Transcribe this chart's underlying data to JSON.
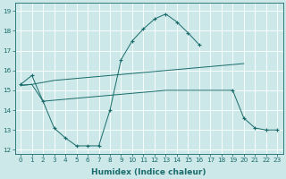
{
  "xlabel": "Humidex (Indice chaleur)",
  "bg_color": "#cce8e8",
  "grid_color": "#ffffff",
  "line_color": "#1a6b6b",
  "xlim": [
    -0.5,
    23.5
  ],
  "ylim": [
    11.8,
    19.4
  ],
  "yticks": [
    12,
    13,
    14,
    15,
    16,
    17,
    18,
    19
  ],
  "xticks": [
    0,
    1,
    2,
    3,
    4,
    5,
    6,
    7,
    8,
    9,
    10,
    11,
    12,
    13,
    14,
    15,
    16,
    17,
    18,
    19,
    20,
    21,
    22,
    23
  ],
  "series": [
    {
      "x": [
        0,
        1,
        2,
        3,
        4,
        5,
        6,
        7,
        8,
        9,
        10,
        11,
        12,
        13,
        14,
        15,
        16,
        17,
        18,
        19,
        20,
        21,
        22,
        23
      ],
      "y": [
        15.3,
        15.75,
        14.45,
        13.1,
        12.6,
        12.2,
        12.2,
        12.2,
        14.0,
        16.55,
        17.5,
        18.1,
        18.6,
        18.85,
        18.45,
        17.9,
        17.3,
        null,
        null,
        15.0,
        13.6,
        13.1,
        13.0,
        13.0
      ],
      "marker": true
    },
    {
      "x": [
        0,
        1,
        2,
        3,
        4,
        5,
        6,
        7,
        8,
        9,
        10,
        11,
        12,
        13,
        14,
        15,
        16,
        17,
        18,
        19,
        20
      ],
      "y": [
        15.25,
        15.3,
        15.4,
        15.5,
        15.55,
        15.6,
        15.65,
        15.7,
        15.75,
        15.8,
        15.85,
        15.9,
        15.95,
        16.0,
        16.05,
        16.1,
        16.15,
        16.2,
        16.25,
        16.3,
        16.35
      ],
      "marker": false
    },
    {
      "x": [
        0,
        1,
        2,
        3,
        4,
        5,
        6,
        7,
        8,
        9,
        10,
        11,
        12,
        13,
        14,
        15,
        16,
        17,
        18,
        19
      ],
      "y": [
        15.25,
        15.3,
        14.45,
        14.5,
        14.55,
        14.6,
        14.65,
        14.7,
        14.75,
        14.8,
        14.85,
        14.9,
        14.95,
        15.0,
        15.0,
        15.0,
        15.0,
        15.0,
        15.0,
        15.0
      ],
      "marker": false
    }
  ],
  "tick_fontsize": 5.2,
  "label_fontsize": 6.5
}
